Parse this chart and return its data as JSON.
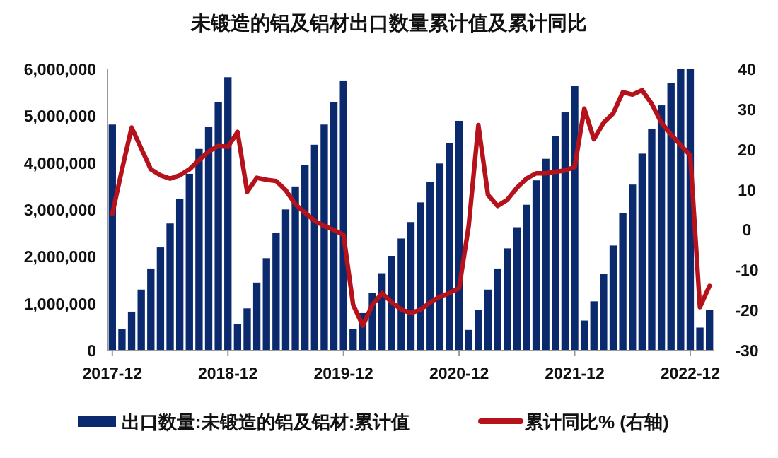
{
  "chart_data": {
    "type": "bar",
    "title": "未锻造的铝及铝材出口数量累计值及累计同比",
    "categories": [
      "2017-12",
      null,
      null,
      null,
      null,
      null,
      null,
      null,
      null,
      null,
      null,
      null,
      "2018-12",
      null,
      null,
      null,
      null,
      null,
      null,
      null,
      null,
      null,
      null,
      null,
      "2019-12",
      null,
      null,
      null,
      null,
      null,
      null,
      null,
      null,
      null,
      null,
      null,
      "2020-12",
      null,
      null,
      null,
      null,
      null,
      null,
      null,
      null,
      null,
      null,
      null,
      "2021-12",
      null,
      null,
      null,
      null,
      null,
      null,
      null,
      null,
      null,
      null,
      null,
      "2022-12",
      null,
      null
    ],
    "series": [
      {
        "name": "出口数量:未锻造的铝及铝材:累计值",
        "color": "#0b2a6e",
        "values": [
          4820000,
          460000,
          830000,
          1300000,
          1750000,
          2200000,
          2710000,
          3230000,
          3770000,
          4300000,
          4770000,
          5300000,
          5830000,
          560000,
          900000,
          1450000,
          1970000,
          2510000,
          3010000,
          3500000,
          3950000,
          4390000,
          4820000,
          5300000,
          5760000,
          460000,
          800000,
          1230000,
          1650000,
          2020000,
          2390000,
          2740000,
          3160000,
          3590000,
          3990000,
          4420000,
          4900000,
          440000,
          870000,
          1300000,
          1750000,
          2180000,
          2630000,
          3110000,
          3630000,
          4090000,
          4570000,
          5080000,
          5650000,
          640000,
          1050000,
          1630000,
          2240000,
          2940000,
          3540000,
          4200000,
          4720000,
          5230000,
          5710000,
          6000000,
          6000000,
          490000,
          870000
        ]
      },
      {
        "name": "累计同比% (右轴)",
        "type": "line",
        "axis": "y2",
        "color": "#b5121b",
        "values": [
          4.0,
          15,
          25.5,
          20.3,
          15.1,
          13.6,
          12.8,
          13.6,
          15.1,
          17.4,
          19.5,
          20.9,
          20.7,
          24.4,
          9.5,
          13.0,
          12.5,
          12.2,
          9.9,
          6.4,
          4.3,
          2.3,
          1.0,
          0,
          -1.2,
          -18.6,
          -23.8,
          -18.6,
          -15.7,
          -18,
          -19.8,
          -20.7,
          -19.8,
          -18,
          -16.6,
          -15.7,
          -14.5,
          1.1,
          26.1,
          8.7,
          6.0,
          7.5,
          10.5,
          12.8,
          14.1,
          14.1,
          14.5,
          14.8,
          15.7,
          30.2,
          22.6,
          26.7,
          29.0,
          34.3,
          33.7,
          34.8,
          31.4,
          26.7,
          23.8,
          21.1,
          18.6,
          -19.2,
          -13.9
        ]
      }
    ],
    "ylim": [
      0,
      6000000
    ],
    "yticks": [
      {
        "value": 0,
        "label": "0"
      },
      {
        "value": 1000000,
        "label": "1,000,000"
      },
      {
        "value": 2000000,
        "label": "2,000,000"
      },
      {
        "value": 3000000,
        "label": "3,000,000"
      },
      {
        "value": 4000000,
        "label": "4,000,000"
      },
      {
        "value": 5000000,
        "label": "5,000,000"
      },
      {
        "value": 6000000,
        "label": "6,000,000"
      }
    ],
    "y2lim": [
      -30,
      40
    ],
    "y2ticks": [
      -30,
      -20,
      -10,
      0,
      10,
      20,
      30,
      40
    ],
    "grid": false,
    "legend": "bottom"
  }
}
